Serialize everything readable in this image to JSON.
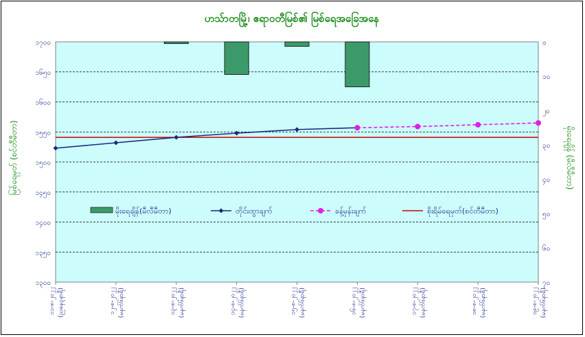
{
  "chart_data": {
    "type": "bar+line",
    "title": "ဟသ်ာတမြို့၊ ဧရာဝတီမြစ်၏ မြစ်ရေအခြေအနေ",
    "ylabel_left": "မြစ်ရေမှတ် (စင်တီမီတာ)",
    "ylabel_right": "မိုးရေချိန် (မီလီမီတာ)",
    "ylim_left": [
      1300,
      1700
    ],
    "yticks_left": [
      "၁၃၀၀",
      "၁၃၅၀",
      "၁၄၀၀",
      "၁၄၅၀",
      "၁၅၀၀",
      "၁၅၅၀",
      "၁၆၀၀",
      "၁၆၅၀",
      "၁၇၀၀"
    ],
    "ylim_right": [
      0,
      70
    ],
    "yticks_right": [
      "၀",
      "၁၀",
      "၂၀",
      "၃၀",
      "၄၀",
      "၅၀",
      "၆၀",
      "၇၀"
    ],
    "categories": [
      [
        "၁၁-၈-၂၀၂၂",
        "(ညနေ၃နာရီ)"
      ],
      [
        "၁၂-၈-၂၀၂၂",
        "(မနက်၆နာရီ)"
      ],
      [
        "၁၃-၈-၂၀၂၂",
        "(မနက်၆နာရီ)"
      ],
      [
        "၁၄-၈-၂၀၂၂",
        "(မနက်၆နာရီ)"
      ],
      [
        "၁၅-၈-၂၀၂၂",
        "(မနက်၆နာရီ)"
      ],
      [
        "၁၆-၈-၂၀၂၂",
        "(မနက်၆နာရီ)"
      ],
      [
        "၁၇-၈-၂၀၂၂",
        "(မနက်၆နာရီ)"
      ],
      [
        "၁၈-၈-၂၀၂၂",
        "(မနက်၆နာရီ)"
      ],
      [
        "၁၉-၈-၂၀၂၂",
        "(မနက်၆နာရီ)"
      ]
    ],
    "series": [
      {
        "name": "မိုးရေချိန်(မီလီမီတာ)",
        "kind": "bar",
        "axis": "right",
        "color": "#3c9a6a",
        "values": [
          0,
          0,
          0.5,
          9.5,
          1.3,
          13.1,
          0,
          0,
          0
        ]
      },
      {
        "name": "တိုင်းထွာချက်",
        "kind": "line",
        "axis": "left",
        "color": "#1a2a7c",
        "values": [
          1523,
          1532,
          1541,
          1548,
          1554,
          1557,
          null,
          null,
          null
        ]
      },
      {
        "name": "ခန့်မှန်းချက်",
        "kind": "dashed-line",
        "axis": "left",
        "color": "#e020e0",
        "values": [
          null,
          null,
          null,
          null,
          null,
          1557,
          1559,
          1562,
          1565
        ]
      },
      {
        "name": "စိုးရိမ်ရေမှတ်(စင်တီမီတာ)",
        "kind": "hline",
        "axis": "left",
        "color": "#cc0000",
        "value": 1541
      }
    ],
    "grid": true,
    "legend": "inside-bottom",
    "colors": {
      "plot_bg": "#ccfcfc",
      "frame_text": "#168a16",
      "tick_text": "#1a2a8c"
    }
  }
}
